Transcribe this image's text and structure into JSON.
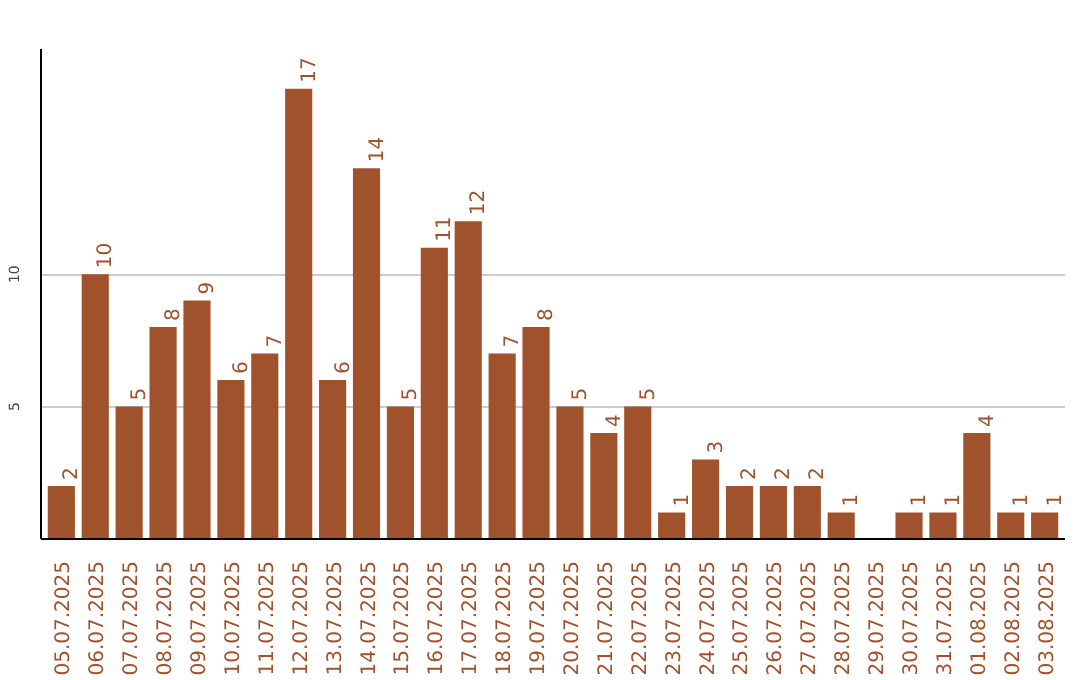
{
  "chart_data": {
    "type": "bar",
    "categories": [
      "05.07.2025",
      "06.07.2025",
      "07.07.2025",
      "08.07.2025",
      "09.07.2025",
      "10.07.2025",
      "11.07.2025",
      "12.07.2025",
      "13.07.2025",
      "14.07.2025",
      "15.07.2025",
      "16.07.2025",
      "17.07.2025",
      "18.07.2025",
      "19.07.2025",
      "20.07.2025",
      "21.07.2025",
      "22.07.2025",
      "23.07.2025",
      "24.07.2025",
      "25.07.2025",
      "26.07.2025",
      "27.07.2025",
      "28.07.2025",
      "29.07.2025",
      "30.07.2025",
      "31.07.2025",
      "01.08.2025",
      "02.08.2025",
      "03.08.2025"
    ],
    "values": [
      2,
      10,
      5,
      8,
      9,
      6,
      7,
      17,
      6,
      14,
      5,
      11,
      12,
      7,
      8,
      5,
      4,
      5,
      1,
      3,
      2,
      2,
      2,
      1,
      null,
      1,
      1,
      4,
      1,
      1
    ],
    "color": "#a0522d",
    "ylim": [
      0,
      18.5
    ],
    "yticks": [
      5,
      10
    ],
    "grid": "y",
    "data_labels": true
  }
}
